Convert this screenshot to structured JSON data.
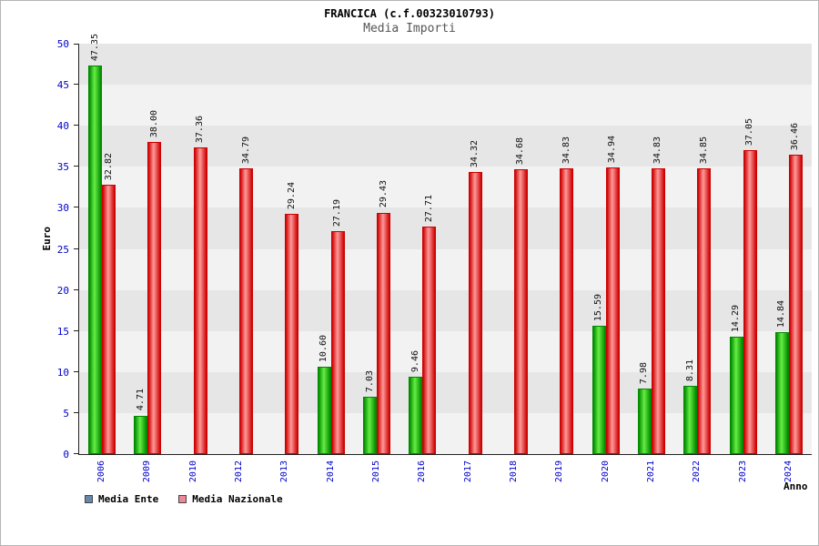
{
  "title": "FRANCICA (c.f.00323010793)",
  "subtitle": "Media Importi",
  "legend": {
    "items": [
      {
        "label": "Media Ente",
        "swatch_color": "#6688aa"
      },
      {
        "label": "Media Nazionale",
        "swatch_color": "#ee8899"
      }
    ]
  },
  "chart_data": {
    "type": "bar",
    "title": "FRANCICA (c.f.00323010793)",
    "subtitle": "Media Importi",
    "xlabel": "Anno",
    "ylabel": "Euro",
    "ylim": [
      0,
      50
    ],
    "ytick_step": 5,
    "grid": "horizontal-bands",
    "legend_position": "bottom-left",
    "band_colors": [
      "#f2f2f2",
      "#e6e6e6"
    ],
    "tick_color": "#0000cc",
    "categories": [
      "2006",
      "2009",
      "2010",
      "2012",
      "2013",
      "2014",
      "2015",
      "2016",
      "2017",
      "2018",
      "2019",
      "2020",
      "2021",
      "2022",
      "2023",
      "2024"
    ],
    "series": [
      {
        "name": "Media Ente",
        "color": "#00bb00",
        "color_light": "#66ee44",
        "color_dark": "#008800",
        "values": [
          47.35,
          4.71,
          null,
          null,
          null,
          10.6,
          7.03,
          9.46,
          null,
          null,
          null,
          15.59,
          7.98,
          8.31,
          14.29,
          14.84
        ]
      },
      {
        "name": "Media Nazionale",
        "color": "#ee2222",
        "color_light": "#ff9999",
        "color_dark": "#cc0000",
        "values": [
          32.82,
          38.0,
          37.36,
          34.79,
          29.24,
          27.19,
          29.43,
          27.71,
          34.32,
          34.68,
          34.83,
          34.94,
          34.83,
          34.85,
          37.05,
          36.46
        ]
      }
    ],
    "value_label_format": "0.00"
  }
}
